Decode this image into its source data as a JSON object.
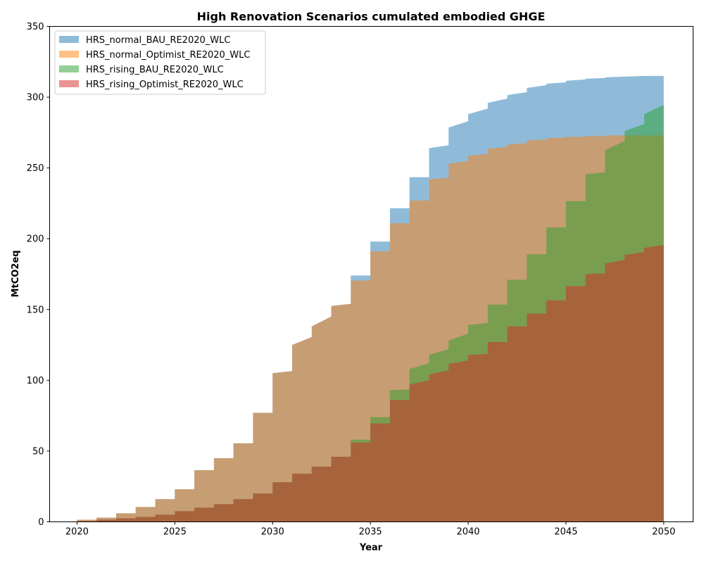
{
  "chart_data": {
    "type": "area",
    "title": "High Renovation Scenarios cumulated embodied GHGE",
    "xlabel": "Year",
    "ylabel": "MtCO2eq",
    "xlim": [
      2018.6,
      2051.5
    ],
    "ylim": [
      0,
      350
    ],
    "xticks": [
      2020,
      2025,
      2030,
      2035,
      2040,
      2045,
      2050
    ],
    "yticks": [
      0,
      50,
      100,
      150,
      200,
      250,
      300,
      350
    ],
    "grid": false,
    "legend_position": "top-left",
    "x": [
      2020,
      2021,
      2022,
      2023,
      2024,
      2025,
      2026,
      2027,
      2028,
      2029,
      2030,
      2031,
      2032,
      2033,
      2034,
      2035,
      2036,
      2037,
      2038,
      2039,
      2040,
      2041,
      2042,
      2043,
      2044,
      2045,
      2046,
      2047,
      2048,
      2049,
      2050
    ],
    "series": [
      {
        "name": "HRS_normal_BAU_RE2020_WLC",
        "color": "#1f77b4",
        "steps": [
          [
            1.5,
            1.5
          ],
          [
            3,
            3
          ],
          [
            6,
            6
          ],
          [
            10.5,
            10.5
          ],
          [
            16,
            16
          ],
          [
            23,
            23
          ],
          [
            36.5,
            36.5
          ],
          [
            45,
            45
          ],
          [
            55.5,
            55.5
          ],
          [
            77,
            77
          ],
          [
            105,
            106.5
          ],
          [
            125,
            130.5
          ],
          [
            138,
            145
          ],
          [
            152.5,
            154
          ],
          [
            174,
            174
          ],
          [
            198,
            198
          ],
          [
            221.5,
            221.5
          ],
          [
            243.5,
            243.5
          ],
          [
            264,
            266
          ],
          [
            278.5,
            283
          ],
          [
            288,
            292
          ],
          [
            296,
            299
          ],
          [
            301.5,
            303.5
          ],
          [
            306.5,
            308.5
          ],
          [
            309.5,
            310.5
          ],
          [
            311.5,
            312.5
          ],
          [
            313,
            313.5
          ],
          [
            314,
            314.5
          ],
          [
            314.5,
            315
          ],
          [
            315,
            315
          ]
        ]
      },
      {
        "name": "HRS_normal_Optimist_RE2020_WLC",
        "color": "#ff7f0e",
        "steps": [
          [
            1.5,
            1.5
          ],
          [
            3,
            3
          ],
          [
            6,
            6
          ],
          [
            10.5,
            10.5
          ],
          [
            16,
            16
          ],
          [
            23,
            23
          ],
          [
            36.5,
            36.5
          ],
          [
            45,
            45
          ],
          [
            55.5,
            55.5
          ],
          [
            77,
            77
          ],
          [
            105,
            106.5
          ],
          [
            125,
            130.5
          ],
          [
            138,
            145
          ],
          [
            152.5,
            154
          ],
          [
            170.5,
            170.5
          ],
          [
            191,
            191
          ],
          [
            211,
            211
          ],
          [
            227,
            227
          ],
          [
            242,
            243
          ],
          [
            253,
            255
          ],
          [
            258.5,
            260
          ],
          [
            263.5,
            265
          ],
          [
            266.5,
            267.5
          ],
          [
            269.5,
            270
          ],
          [
            271,
            271.5
          ],
          [
            272,
            272
          ],
          [
            272.5,
            272.5
          ],
          [
            273,
            273
          ],
          [
            273,
            273
          ],
          [
            273,
            273
          ]
        ]
      },
      {
        "name": "HRS_rising_BAU_RE2020_WLC",
        "color": "#2ca02c",
        "steps": [
          [
            0.5,
            0.5
          ],
          [
            1.5,
            1.5
          ],
          [
            2.5,
            2.5
          ],
          [
            3.5,
            3.5
          ],
          [
            5,
            5
          ],
          [
            7.5,
            7.5
          ],
          [
            10,
            10
          ],
          [
            12.5,
            12.5
          ],
          [
            16,
            16
          ],
          [
            20,
            20
          ],
          [
            28,
            28
          ],
          [
            34,
            34
          ],
          [
            39,
            39
          ],
          [
            46,
            46
          ],
          [
            58,
            58
          ],
          [
            74,
            74
          ],
          [
            93,
            93.5
          ],
          [
            108,
            112
          ],
          [
            118,
            122
          ],
          [
            128,
            133
          ],
          [
            139,
            140.5
          ],
          [
            153.5,
            153.5
          ],
          [
            171,
            171
          ],
          [
            189,
            189
          ],
          [
            208,
            208
          ],
          [
            226.5,
            226.5
          ],
          [
            245.5,
            247
          ],
          [
            262.5,
            269
          ],
          [
            276,
            281
          ],
          [
            288,
            294.5
          ]
        ]
      },
      {
        "name": "HRS_rising_Optimist_RE2020_WLC",
        "color": "#d62728",
        "steps": [
          [
            0.5,
            0.5
          ],
          [
            1.5,
            1.5
          ],
          [
            2.5,
            2.5
          ],
          [
            3.5,
            3.5
          ],
          [
            5,
            5
          ],
          [
            7.5,
            7.5
          ],
          [
            10,
            10
          ],
          [
            12.5,
            12.5
          ],
          [
            16,
            16
          ],
          [
            20,
            20
          ],
          [
            28,
            28
          ],
          [
            34,
            34
          ],
          [
            39,
            39
          ],
          [
            46,
            46
          ],
          [
            56,
            56
          ],
          [
            69.5,
            69.5
          ],
          [
            86,
            86
          ],
          [
            97,
            100
          ],
          [
            104,
            107
          ],
          [
            111.5,
            114
          ],
          [
            118,
            118.5
          ],
          [
            127,
            127
          ],
          [
            138,
            138
          ],
          [
            147,
            147
          ],
          [
            156.5,
            156.5
          ],
          [
            166.5,
            166.5
          ],
          [
            175,
            175.5
          ],
          [
            182.5,
            185
          ],
          [
            188.5,
            190.5
          ],
          [
            193.5,
            195.5
          ]
        ]
      }
    ]
  }
}
